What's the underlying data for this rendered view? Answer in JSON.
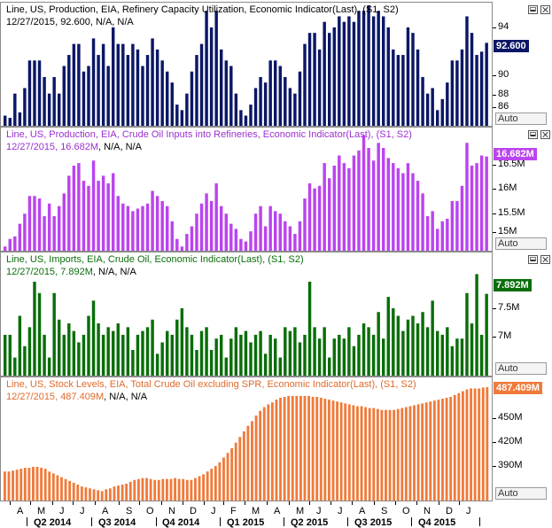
{
  "panels": [
    {
      "label": "Line, US, Production, EIA, Refinery Capacity Utilization, Economic Indicator(Last), (S1, S2)",
      "info_date": "12/27/2015",
      "info_value": "92.600",
      "info_rest": "N/A, N/A",
      "color": "#0b1766",
      "label_color": "#000000",
      "badge": "92.600",
      "ticks": [
        "94",
        "92",
        "90",
        "88",
        "86"
      ],
      "auto": "Auto"
    },
    {
      "label": "Line, US, Production, EIA, Crude Oil Inputs into Refineries, Economic Indicator(Last), (S1, S2)",
      "info_date": "12/27/2015",
      "info_value": "16.682M",
      "info_rest": "N/A, N/A",
      "color": "#bb44ee",
      "label_color": "#9a2fd0",
      "badge": "16.682M",
      "ticks": [
        "16.5M",
        "16M",
        "15.5M",
        "15M"
      ],
      "auto": "Auto"
    },
    {
      "label": "Line, US, Imports, EIA, Crude Oil, Economic Indicator(Last), (S1, S2)",
      "info_date": "12/27/2015",
      "info_value": "7.892M",
      "info_rest": "N/A, N/A",
      "color": "#0a6e0a",
      "label_color": "#0a6e0a",
      "badge": "7.892M",
      "ticks": [
        "7.5M",
        "7M"
      ],
      "auto": "Auto"
    },
    {
      "label": "Line, US, Stock Levels, EIA, Total Crude Oil excluding SPR, Economic Indicator(Last), (S1, S2)",
      "info_date": "12/27/2015",
      "info_value": "487.409M",
      "info_rest": "N/A, N/A",
      "color": "#f07a3a",
      "label_color": "#e06a2a",
      "badge": "487.409M",
      "ticks": [
        "450M",
        "420M",
        "390M"
      ],
      "auto": "Auto"
    }
  ],
  "months": [
    "A",
    "M",
    "J",
    "J",
    "A",
    "S",
    "O",
    "N",
    "D",
    "J",
    "F",
    "M",
    "A",
    "M",
    "J",
    "J",
    "A",
    "S",
    "O",
    "N",
    "D",
    "J"
  ],
  "quarters": [
    "Q2 2014",
    "Q3 2014",
    "Q4 2014",
    "Q1 2015",
    "Q2 2015",
    "Q3 2015",
    "Q4 2015"
  ],
  "chart_data": [
    {
      "type": "bar",
      "ylim": [
        85,
        96
      ],
      "values": [
        86,
        85.8,
        88,
        86.3,
        88.5,
        91,
        91,
        91,
        89.5,
        88,
        89.5,
        88,
        90.5,
        91.5,
        92.5,
        92.5,
        90,
        90.5,
        93,
        91.5,
        92.5,
        90.5,
        94,
        92.5,
        92.5,
        91.5,
        92.5,
        92,
        90.5,
        91.5,
        93,
        92,
        91,
        90,
        89,
        87,
        86.5,
        88,
        90,
        91.5,
        92.5,
        95.5,
        94,
        95.5,
        92,
        91,
        90.5,
        88,
        86.5,
        86,
        87,
        88.5,
        89.5,
        89,
        91,
        91,
        90.5,
        89.5,
        88.5,
        88,
        90,
        92.5,
        93.5,
        93.5,
        92,
        94.5,
        93.5,
        94,
        95,
        94.5,
        95,
        94.5,
        95.5,
        95.5,
        96,
        95,
        95.5,
        95,
        94,
        92,
        91.5,
        91.5,
        94,
        93.5,
        92,
        89.5,
        88,
        88.5,
        86.5,
        87.5,
        89,
        91,
        91,
        92,
        95,
        93.5,
        91.5,
        91.8,
        92.6
      ]
    },
    {
      "type": "bar",
      "ylim": [
        14.8,
        17.2
      ],
      "values": [
        14.9,
        15.05,
        15.1,
        15.35,
        15.55,
        15.9,
        15.9,
        15.85,
        15.5,
        15.75,
        15.5,
        15.7,
        15.95,
        16.3,
        16.5,
        16.55,
        16.2,
        16.1,
        16.6,
        16.2,
        16.3,
        16.15,
        16.35,
        15.9,
        15.75,
        15.7,
        15.6,
        15.65,
        15.7,
        15.75,
        16,
        15.9,
        15.8,
        15.7,
        15.4,
        15.05,
        14.9,
        15.15,
        15.3,
        15.55,
        15.75,
        15.95,
        15.8,
        16.15,
        15.7,
        15.55,
        15.35,
        15.25,
        15.05,
        15,
        15.2,
        15.55,
        15.7,
        15.3,
        15.7,
        15.6,
        15.55,
        15.4,
        15.3,
        15.15,
        15.4,
        15.85,
        16.15,
        16.05,
        16.1,
        16.55,
        16.25,
        16.5,
        16.7,
        16.55,
        16.45,
        16.7,
        16.8,
        17.1,
        16.85,
        16.6,
        16.95,
        16.85,
        16.65,
        16.55,
        16.45,
        16.35,
        16.55,
        16.35,
        16.2,
        15.95,
        15.5,
        15.6,
        15.25,
        15.4,
        15.45,
        15.8,
        15.8,
        16.1,
        16.95,
        16.5,
        16.55,
        16.7,
        16.68
      ]
    },
    {
      "type": "bar",
      "ylim": [
        6.8,
        8.4
      ],
      "values": [
        7.35,
        7.35,
        7.05,
        7.6,
        7.2,
        7.45,
        8.05,
        7.9,
        7.35,
        7.05,
        7.9,
        7.55,
        7.35,
        7.5,
        7.4,
        7.25,
        7.35,
        7.6,
        7.8,
        7.5,
        7.35,
        7.45,
        7.4,
        7.5,
        7.35,
        7.45,
        7.15,
        7.35,
        7.4,
        7.45,
        7.55,
        7.1,
        7.25,
        7.4,
        7.35,
        7.55,
        7.7,
        7.45,
        7.35,
        7.15,
        7.4,
        7.45,
        7.15,
        7.3,
        7.35,
        7.05,
        7.3,
        7.45,
        7.35,
        7.4,
        7.25,
        7.35,
        7.4,
        7.1,
        7.35,
        7.3,
        7.05,
        7.45,
        7.4,
        7.45,
        7.25,
        7.35,
        8.05,
        7.45,
        7.3,
        7.45,
        7.05,
        7.3,
        7.35,
        7.3,
        7.45,
        7.2,
        7.35,
        7.5,
        7.45,
        7.35,
        7.65,
        7.3,
        7.85,
        7.7,
        7.6,
        7.4,
        7.55,
        7.6,
        7.5,
        7.65,
        7.45,
        7.8,
        7.4,
        7.35,
        7.45,
        7.2,
        7.3,
        7.3,
        7.9,
        7.5,
        8.15,
        7.35,
        7.89
      ]
    },
    {
      "type": "bar",
      "ylim": [
        365,
        495
      ],
      "values": [
        397,
        397,
        398,
        399,
        400,
        401,
        401,
        402,
        402,
        401,
        400,
        397,
        395,
        393,
        391,
        389,
        387,
        385,
        383,
        381,
        380,
        379,
        378,
        377,
        376,
        378,
        379,
        381,
        382,
        383,
        384,
        386,
        388,
        389,
        390,
        390,
        389,
        388,
        388,
        389,
        389,
        389,
        390,
        389,
        389,
        388,
        388,
        390,
        392,
        394,
        397,
        400,
        403,
        407,
        412,
        417,
        422,
        428,
        434,
        440,
        446,
        451,
        457,
        462,
        466,
        469,
        471,
        474,
        476,
        477,
        478,
        478,
        478,
        478,
        478,
        478,
        477,
        477,
        476,
        475,
        474,
        473,
        472,
        471,
        470,
        469,
        468,
        467,
        467,
        466,
        465,
        465,
        464,
        463,
        463,
        463,
        463,
        464,
        465,
        466,
        467,
        468,
        469,
        470,
        471,
        472,
        473,
        474,
        475,
        476,
        477,
        479,
        481,
        483,
        485,
        486,
        486,
        486,
        487,
        487.409
      ]
    }
  ]
}
